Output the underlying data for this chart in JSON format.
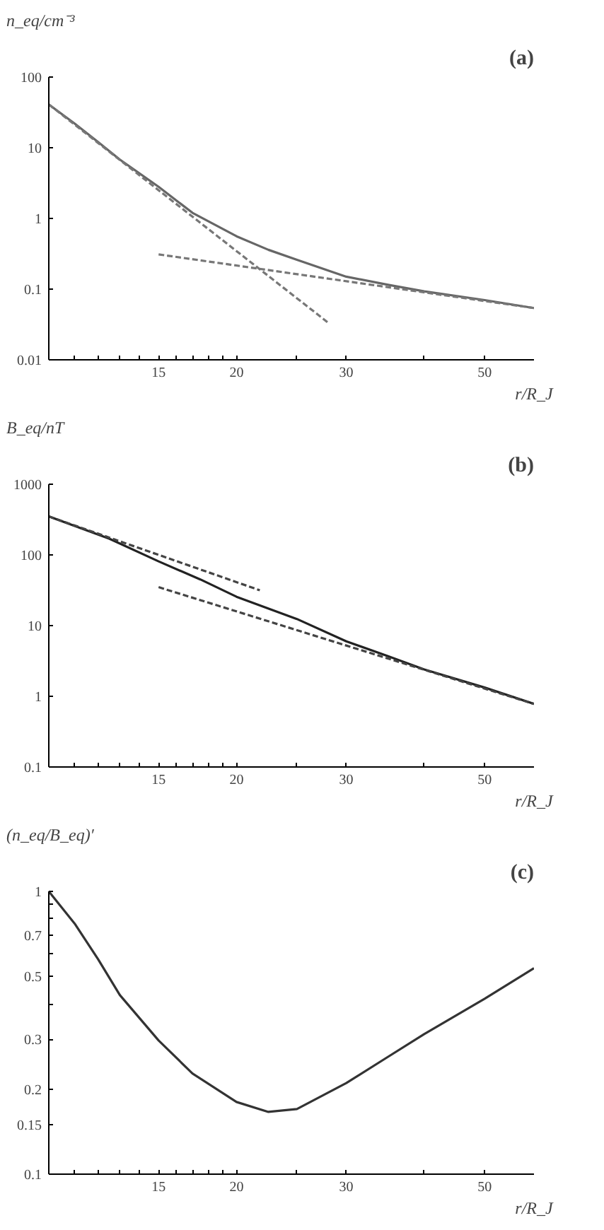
{
  "chart_data": [
    {
      "type": "line",
      "title": "(a)",
      "xlabel": "r/R_J",
      "ylabel": "n_eq/cm⁻³",
      "log": "xy",
      "grid": false,
      "xlim": [
        10,
        60
      ],
      "ylim": [
        0.01,
        100
      ],
      "xticks": [
        {
          "value": 11,
          "label": null
        },
        {
          "value": 12,
          "label": null
        },
        {
          "value": 13,
          "label": null
        },
        {
          "value": 14,
          "label": null
        },
        15,
        {
          "value": 16,
          "label": null
        },
        {
          "value": 17,
          "label": null
        },
        {
          "value": 18,
          "label": null
        },
        {
          "value": 19,
          "label": null
        },
        20,
        {
          "value": 25,
          "label": null
        },
        30,
        {
          "value": 40,
          "label": null
        },
        50
      ],
      "yticks": [
        0.01,
        0.1,
        1,
        10,
        100
      ],
      "series": [
        {
          "color": "#666666",
          "line_style": "solid",
          "x": [
            10,
            11,
            12,
            13,
            15,
            17,
            20,
            22.5,
            25,
            30,
            35,
            40,
            50,
            60
          ],
          "values": [
            41,
            22,
            12,
            6.8,
            2.8,
            1.2,
            0.56,
            0.36,
            0.26,
            0.15,
            0.115,
            0.093,
            0.07,
            0.054
          ]
        },
        {
          "color": "#777777",
          "line_style": "dashed",
          "x": [
            10,
            28
          ],
          "values": [
            41,
            0.034
          ]
        },
        {
          "color": "#777777",
          "line_style": "dashed",
          "x": [
            15,
            60
          ],
          "values": [
            0.31,
            0.054
          ]
        }
      ]
    },
    {
      "type": "line",
      "title": "(b)",
      "xlabel": "r/R_J",
      "ylabel": "B_eq/nT",
      "log": "xy",
      "grid": false,
      "xlim": [
        10,
        60
      ],
      "ylim": [
        0.1,
        1000
      ],
      "xticks": [
        {
          "value": 11,
          "label": null
        },
        {
          "value": 12,
          "label": null
        },
        {
          "value": 13,
          "label": null
        },
        {
          "value": 14,
          "label": null
        },
        15,
        {
          "value": 16,
          "label": null
        },
        {
          "value": 17,
          "label": null
        },
        {
          "value": 18,
          "label": null
        },
        {
          "value": 19,
          "label": null
        },
        20,
        {
          "value": 25,
          "label": null
        },
        30,
        {
          "value": 40,
          "label": null
        },
        50
      ],
      "yticks": [
        0.1,
        1,
        10,
        100,
        1000
      ],
      "series": [
        {
          "color": "#222222",
          "line_style": "solid",
          "x": [
            10,
            12.5,
            15,
            17.5,
            20,
            25,
            30,
            35,
            40,
            50,
            60
          ],
          "values": [
            350,
            170,
            81,
            45,
            25.6,
            12.4,
            6.0,
            3.7,
            2.4,
            1.33,
            0.78
          ]
        },
        {
          "color": "#444444",
          "line_style": "dashed",
          "x": [
            10,
            21.8
          ],
          "values": [
            350,
            31.6
          ]
        },
        {
          "color": "#444444",
          "line_style": "dashed",
          "x": [
            15,
            60
          ],
          "values": [
            35,
            0.78
          ]
        }
      ]
    },
    {
      "type": "line",
      "title": "(c)",
      "xlabel": "r/R_J",
      "ylabel": "(n_eq/B_eq)′",
      "log": "xy",
      "grid": false,
      "xlim": [
        10,
        60
      ],
      "ylim": [
        0.1,
        1
      ],
      "xticks": [
        {
          "value": 11,
          "label": null
        },
        {
          "value": 12,
          "label": null
        },
        {
          "value": 13,
          "label": null
        },
        {
          "value": 14,
          "label": null
        },
        15,
        {
          "value": 16,
          "label": null
        },
        {
          "value": 17,
          "label": null
        },
        {
          "value": 18,
          "label": null
        },
        {
          "value": 19,
          "label": null
        },
        20,
        {
          "value": 25,
          "label": null
        },
        30,
        {
          "value": 40,
          "label": null
        },
        50
      ],
      "yticks": [
        0.1,
        0.15,
        0.2,
        0.3,
        {
          "value": 0.4,
          "label": null
        },
        0.5,
        {
          "value": 0.6,
          "label": null
        },
        0.7,
        {
          "value": 0.8,
          "label": null
        },
        {
          "value": 0.9,
          "label": null
        },
        1
      ],
      "series": [
        {
          "color": "#333333",
          "line_style": "solid",
          "x": [
            10,
            11,
            12,
            13,
            15,
            17,
            20,
            22.5,
            25,
            30,
            35,
            40,
            50,
            60
          ],
          "values": [
            1.0,
            0.77,
            0.575,
            0.43,
            0.297,
            0.227,
            0.18,
            0.166,
            0.17,
            0.21,
            0.26,
            0.313,
            0.417,
            0.535
          ]
        }
      ]
    }
  ]
}
